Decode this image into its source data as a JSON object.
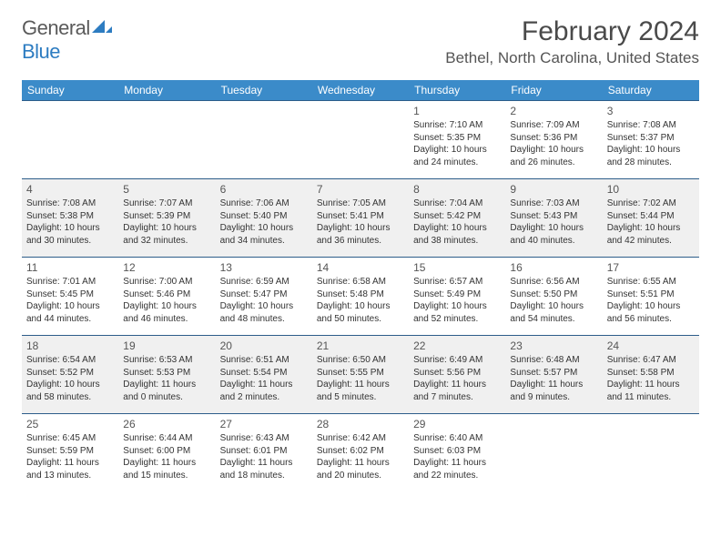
{
  "logo": {
    "text1": "General",
    "text2": "Blue"
  },
  "title": "February 2024",
  "location": "Bethel, North Carolina, United States",
  "colors": {
    "header_bg": "#3b8bc9",
    "header_text": "#ffffff",
    "row_divider": "#2d5d8a",
    "alt_row_bg": "#f0f0f0",
    "logo_gray": "#5a5a5a",
    "logo_blue": "#2d7cc1"
  },
  "typography": {
    "title_fontsize": 30,
    "location_fontsize": 17,
    "header_fontsize": 12,
    "cell_fontsize": 10,
    "daynum_fontsize": 12
  },
  "dayHeaders": [
    "Sunday",
    "Monday",
    "Tuesday",
    "Wednesday",
    "Thursday",
    "Friday",
    "Saturday"
  ],
  "weeks": [
    [
      null,
      null,
      null,
      null,
      {
        "n": "1",
        "sr": "Sunrise: 7:10 AM",
        "ss": "Sunset: 5:35 PM",
        "dl": "Daylight: 10 hours and 24 minutes."
      },
      {
        "n": "2",
        "sr": "Sunrise: 7:09 AM",
        "ss": "Sunset: 5:36 PM",
        "dl": "Daylight: 10 hours and 26 minutes."
      },
      {
        "n": "3",
        "sr": "Sunrise: 7:08 AM",
        "ss": "Sunset: 5:37 PM",
        "dl": "Daylight: 10 hours and 28 minutes."
      }
    ],
    [
      {
        "n": "4",
        "sr": "Sunrise: 7:08 AM",
        "ss": "Sunset: 5:38 PM",
        "dl": "Daylight: 10 hours and 30 minutes."
      },
      {
        "n": "5",
        "sr": "Sunrise: 7:07 AM",
        "ss": "Sunset: 5:39 PM",
        "dl": "Daylight: 10 hours and 32 minutes."
      },
      {
        "n": "6",
        "sr": "Sunrise: 7:06 AM",
        "ss": "Sunset: 5:40 PM",
        "dl": "Daylight: 10 hours and 34 minutes."
      },
      {
        "n": "7",
        "sr": "Sunrise: 7:05 AM",
        "ss": "Sunset: 5:41 PM",
        "dl": "Daylight: 10 hours and 36 minutes."
      },
      {
        "n": "8",
        "sr": "Sunrise: 7:04 AM",
        "ss": "Sunset: 5:42 PM",
        "dl": "Daylight: 10 hours and 38 minutes."
      },
      {
        "n": "9",
        "sr": "Sunrise: 7:03 AM",
        "ss": "Sunset: 5:43 PM",
        "dl": "Daylight: 10 hours and 40 minutes."
      },
      {
        "n": "10",
        "sr": "Sunrise: 7:02 AM",
        "ss": "Sunset: 5:44 PM",
        "dl": "Daylight: 10 hours and 42 minutes."
      }
    ],
    [
      {
        "n": "11",
        "sr": "Sunrise: 7:01 AM",
        "ss": "Sunset: 5:45 PM",
        "dl": "Daylight: 10 hours and 44 minutes."
      },
      {
        "n": "12",
        "sr": "Sunrise: 7:00 AM",
        "ss": "Sunset: 5:46 PM",
        "dl": "Daylight: 10 hours and 46 minutes."
      },
      {
        "n": "13",
        "sr": "Sunrise: 6:59 AM",
        "ss": "Sunset: 5:47 PM",
        "dl": "Daylight: 10 hours and 48 minutes."
      },
      {
        "n": "14",
        "sr": "Sunrise: 6:58 AM",
        "ss": "Sunset: 5:48 PM",
        "dl": "Daylight: 10 hours and 50 minutes."
      },
      {
        "n": "15",
        "sr": "Sunrise: 6:57 AM",
        "ss": "Sunset: 5:49 PM",
        "dl": "Daylight: 10 hours and 52 minutes."
      },
      {
        "n": "16",
        "sr": "Sunrise: 6:56 AM",
        "ss": "Sunset: 5:50 PM",
        "dl": "Daylight: 10 hours and 54 minutes."
      },
      {
        "n": "17",
        "sr": "Sunrise: 6:55 AM",
        "ss": "Sunset: 5:51 PM",
        "dl": "Daylight: 10 hours and 56 minutes."
      }
    ],
    [
      {
        "n": "18",
        "sr": "Sunrise: 6:54 AM",
        "ss": "Sunset: 5:52 PM",
        "dl": "Daylight: 10 hours and 58 minutes."
      },
      {
        "n": "19",
        "sr": "Sunrise: 6:53 AM",
        "ss": "Sunset: 5:53 PM",
        "dl": "Daylight: 11 hours and 0 minutes."
      },
      {
        "n": "20",
        "sr": "Sunrise: 6:51 AM",
        "ss": "Sunset: 5:54 PM",
        "dl": "Daylight: 11 hours and 2 minutes."
      },
      {
        "n": "21",
        "sr": "Sunrise: 6:50 AM",
        "ss": "Sunset: 5:55 PM",
        "dl": "Daylight: 11 hours and 5 minutes."
      },
      {
        "n": "22",
        "sr": "Sunrise: 6:49 AM",
        "ss": "Sunset: 5:56 PM",
        "dl": "Daylight: 11 hours and 7 minutes."
      },
      {
        "n": "23",
        "sr": "Sunrise: 6:48 AM",
        "ss": "Sunset: 5:57 PM",
        "dl": "Daylight: 11 hours and 9 minutes."
      },
      {
        "n": "24",
        "sr": "Sunrise: 6:47 AM",
        "ss": "Sunset: 5:58 PM",
        "dl": "Daylight: 11 hours and 11 minutes."
      }
    ],
    [
      {
        "n": "25",
        "sr": "Sunrise: 6:45 AM",
        "ss": "Sunset: 5:59 PM",
        "dl": "Daylight: 11 hours and 13 minutes."
      },
      {
        "n": "26",
        "sr": "Sunrise: 6:44 AM",
        "ss": "Sunset: 6:00 PM",
        "dl": "Daylight: 11 hours and 15 minutes."
      },
      {
        "n": "27",
        "sr": "Sunrise: 6:43 AM",
        "ss": "Sunset: 6:01 PM",
        "dl": "Daylight: 11 hours and 18 minutes."
      },
      {
        "n": "28",
        "sr": "Sunrise: 6:42 AM",
        "ss": "Sunset: 6:02 PM",
        "dl": "Daylight: 11 hours and 20 minutes."
      },
      {
        "n": "29",
        "sr": "Sunrise: 6:40 AM",
        "ss": "Sunset: 6:03 PM",
        "dl": "Daylight: 11 hours and 22 minutes."
      },
      null,
      null
    ]
  ]
}
